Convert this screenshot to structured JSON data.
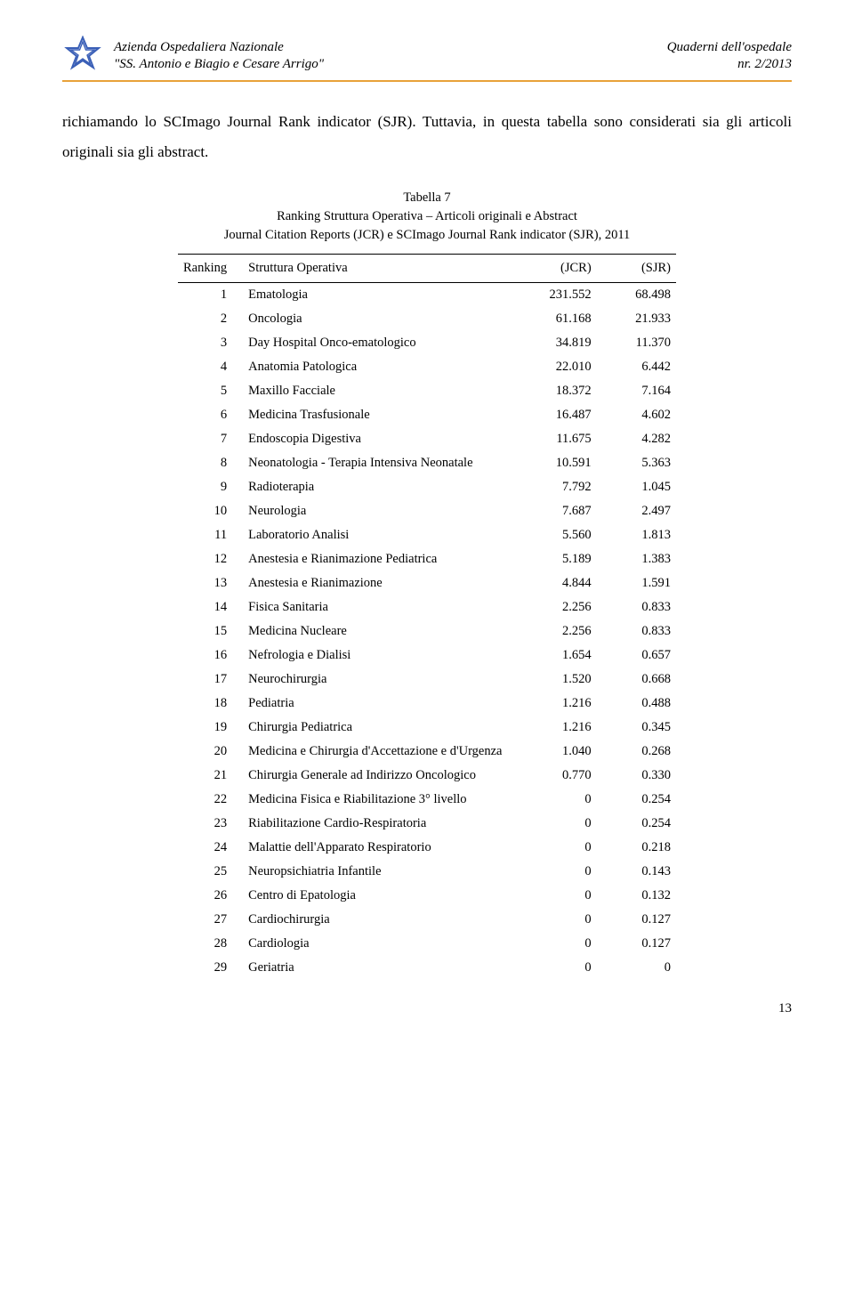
{
  "header": {
    "org_line1": "Azienda Ospedaliera Nazionale",
    "org_line2": "\"SS. Antonio e Biagio e Cesare Arrigo\"",
    "pub_line1": "Quaderni dell'ospedale",
    "pub_line2": "nr. 2/2013"
  },
  "body": {
    "paragraph": "richiamando lo SCImago Journal Rank indicator (SJR). Tuttavia, in questa tabella sono considerati sia gli articoli originali sia gli abstract."
  },
  "table": {
    "title_line1": "Tabella 7",
    "title_line2": "Ranking Struttura Operativa – Articoli originali e Abstract",
    "title_line3": "Journal Citation Reports (JCR) e SCImago Journal Rank indicator (SJR), 2011",
    "headers": {
      "c1": "Ranking",
      "c2": "Struttura Operativa",
      "c3": "(JCR)",
      "c4": "(SJR)"
    },
    "rows": [
      {
        "r": "1",
        "name": "Ematologia",
        "jcr": "231.552",
        "sjr": "68.498"
      },
      {
        "r": "2",
        "name": "Oncologia",
        "jcr": "61.168",
        "sjr": "21.933"
      },
      {
        "r": "3",
        "name": "Day Hospital Onco-ematologico",
        "jcr": "34.819",
        "sjr": "11.370"
      },
      {
        "r": "4",
        "name": "Anatomia Patologica",
        "jcr": "22.010",
        "sjr": "6.442"
      },
      {
        "r": "5",
        "name": "Maxillo Facciale",
        "jcr": "18.372",
        "sjr": "7.164"
      },
      {
        "r": "6",
        "name": "Medicina Trasfusionale",
        "jcr": "16.487",
        "sjr": "4.602"
      },
      {
        "r": "7",
        "name": "Endoscopia Digestiva",
        "jcr": "11.675",
        "sjr": "4.282"
      },
      {
        "r": "8",
        "name": "Neonatologia - Terapia Intensiva Neonatale",
        "jcr": "10.591",
        "sjr": "5.363"
      },
      {
        "r": "9",
        "name": "Radioterapia",
        "jcr": "7.792",
        "sjr": "1.045"
      },
      {
        "r": "10",
        "name": "Neurologia",
        "jcr": "7.687",
        "sjr": "2.497"
      },
      {
        "r": "11",
        "name": "Laboratorio Analisi",
        "jcr": "5.560",
        "sjr": "1.813"
      },
      {
        "r": "12",
        "name": "Anestesia e Rianimazione Pediatrica",
        "jcr": "5.189",
        "sjr": "1.383"
      },
      {
        "r": "13",
        "name": "Anestesia e Rianimazione",
        "jcr": "4.844",
        "sjr": "1.591"
      },
      {
        "r": "14",
        "name": "Fisica Sanitaria",
        "jcr": "2.256",
        "sjr": "0.833"
      },
      {
        "r": "15",
        "name": "Medicina Nucleare",
        "jcr": "2.256",
        "sjr": "0.833"
      },
      {
        "r": "16",
        "name": "Nefrologia e Dialisi",
        "jcr": "1.654",
        "sjr": "0.657"
      },
      {
        "r": "17",
        "name": "Neurochirurgia",
        "jcr": "1.520",
        "sjr": "0.668"
      },
      {
        "r": "18",
        "name": "Pediatria",
        "jcr": "1.216",
        "sjr": "0.488"
      },
      {
        "r": "19",
        "name": "Chirurgia Pediatrica",
        "jcr": "1.216",
        "sjr": "0.345"
      },
      {
        "r": "20",
        "name": "Medicina e Chirurgia d'Accettazione e d'Urgenza",
        "jcr": "1.040",
        "sjr": "0.268"
      },
      {
        "r": "21",
        "name": "Chirurgia Generale ad Indirizzo Oncologico",
        "jcr": "0.770",
        "sjr": "0.330"
      },
      {
        "r": "22",
        "name": "Medicina Fisica e Riabilitazione 3° livello",
        "jcr": "0",
        "sjr": "0.254"
      },
      {
        "r": "23",
        "name": "Riabilitazione Cardio-Respiratoria",
        "jcr": "0",
        "sjr": "0.254"
      },
      {
        "r": "24",
        "name": "Malattie dell'Apparato Respiratorio",
        "jcr": "0",
        "sjr": "0.218"
      },
      {
        "r": "25",
        "name": "Neuropsichiatria Infantile",
        "jcr": "0",
        "sjr": "0.143"
      },
      {
        "r": "26",
        "name": "Centro di Epatologia",
        "jcr": "0",
        "sjr": "0.132"
      },
      {
        "r": "27",
        "name": "Cardiochirurgia",
        "jcr": "0",
        "sjr": "0.127"
      },
      {
        "r": "28",
        "name": "Cardiologia",
        "jcr": "0",
        "sjr": "0.127"
      },
      {
        "r": "29",
        "name": "Geriatria",
        "jcr": "0",
        "sjr": "0"
      }
    ]
  },
  "page_number": "13",
  "colors": {
    "accent": "#e8a23a",
    "logo_star": "#3a5fb7"
  }
}
